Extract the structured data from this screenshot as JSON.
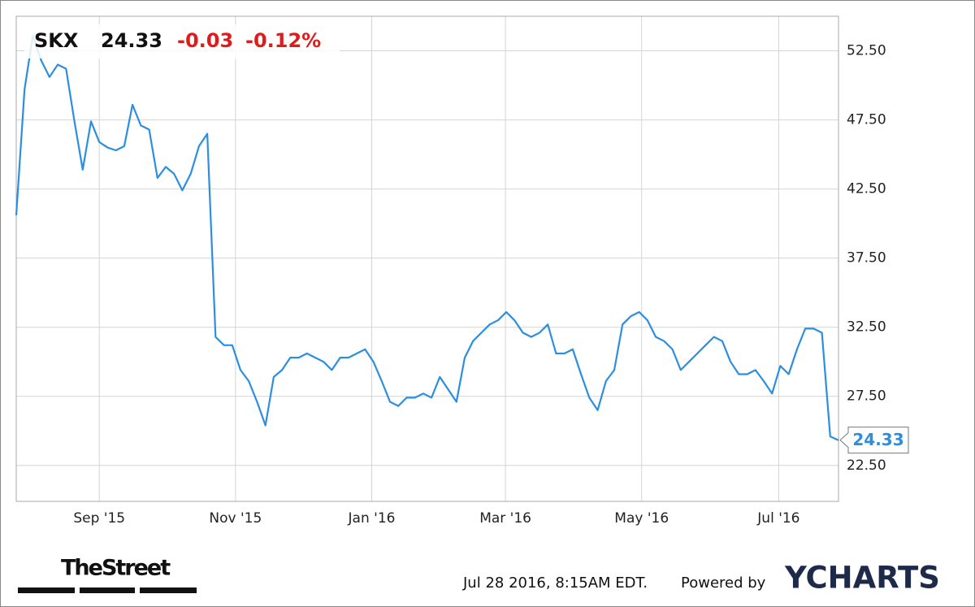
{
  "chart_data": {
    "type": "line",
    "header": {
      "ticker": "SKX",
      "price": "24.33",
      "change": "-0.03",
      "change_pct": "-0.12%"
    },
    "series": [
      {
        "name": "SKX",
        "color": "#2b8ee0",
        "values": [
          40.6,
          49.7,
          53.6,
          51.8,
          50.6,
          51.5,
          51.2,
          47.4,
          43.9,
          47.4,
          45.9,
          45.5,
          45.3,
          45.6,
          48.6,
          47.1,
          46.8,
          43.3,
          44.1,
          43.6,
          42.4,
          43.6,
          45.6,
          46.5,
          31.8,
          31.2,
          31.2,
          29.4,
          28.6,
          27.1,
          25.4,
          28.9,
          29.4,
          30.3,
          30.3,
          30.6,
          30.3,
          30.0,
          29.4,
          30.3,
          30.3,
          30.6,
          30.9,
          30.0,
          28.6,
          27.1,
          26.8,
          27.4,
          27.4,
          27.7,
          27.4,
          28.9,
          28.0,
          27.1,
          30.3,
          31.5,
          32.1,
          32.7,
          33.0,
          33.6,
          33.0,
          32.1,
          31.8,
          32.1,
          32.7,
          30.6,
          30.6,
          30.9,
          29.1,
          27.4,
          26.5,
          28.6,
          29.4,
          32.7,
          33.3,
          33.6,
          33.0,
          31.8,
          31.5,
          30.9,
          29.4,
          30.0,
          30.6,
          31.2,
          31.8,
          31.5,
          30.0,
          29.1,
          29.1,
          29.4,
          28.6,
          27.7,
          29.7,
          29.1,
          30.9,
          32.4,
          32.4,
          32.1,
          24.6,
          24.33
        ]
      }
    ],
    "xlim": [
      0,
      99
    ],
    "xticks": [
      {
        "value": 10,
        "label": "Sep '15"
      },
      {
        "value": 26.4,
        "label": "Nov '15"
      },
      {
        "value": 42.8,
        "label": "Jan '16"
      },
      {
        "value": 58.9,
        "label": "Mar '16"
      },
      {
        "value": 75.3,
        "label": "May '16"
      },
      {
        "value": 91.8,
        "label": "Jul '16"
      }
    ],
    "ylim": [
      19.9,
      55.0
    ],
    "yticks": [
      {
        "value": 22.5,
        "label": "22.50"
      },
      {
        "value": 27.5,
        "label": "27.50"
      },
      {
        "value": 32.5,
        "label": "32.50"
      },
      {
        "value": 37.5,
        "label": "37.50"
      },
      {
        "value": 42.5,
        "label": "42.50"
      },
      {
        "value": 47.5,
        "label": "47.50"
      },
      {
        "value": 52.5,
        "label": "52.50"
      }
    ],
    "grid": true,
    "footer": {
      "brand": "TheStreet",
      "timestamp": "Jul 28 2016, 8:15AM EDT.",
      "powered": "Powered by",
      "logo": "YCHARTS"
    }
  }
}
